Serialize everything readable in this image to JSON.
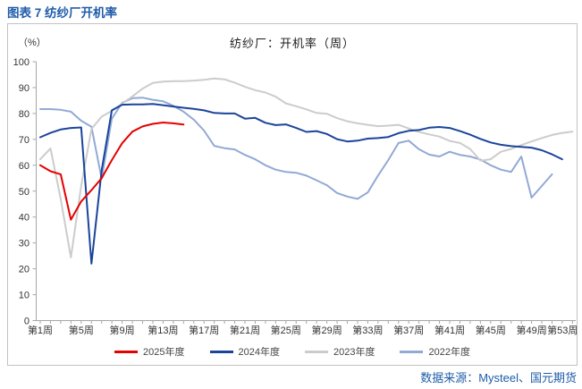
{
  "page": {
    "title": "图表 7 纺纱厂开机率",
    "source": "数据来源：Mysteel、国元期货"
  },
  "colors": {
    "accent_blue": "#1f5ca9",
    "axis": "#a6a6a6",
    "tick_text": "#333333",
    "border": "#c3c3c3"
  },
  "chart_data": {
    "type": "line",
    "title": "纺纱厂：开机率（周）",
    "unit_label": "（%）",
    "grid": false,
    "legend_position": "bottom",
    "x_axis": {
      "weeks_min": 1,
      "weeks_max": 53,
      "label_every": 4,
      "tick_labels": [
        "第1周",
        "第5周",
        "第9周",
        "第13周",
        "第17周",
        "第21周",
        "第25周",
        "第29周",
        "第33周",
        "第37周",
        "第41周",
        "第45周",
        "第49周",
        "第53周"
      ]
    },
    "y_axis": {
      "min": 0,
      "max": 100,
      "step": 10
    },
    "series": [
      {
        "name": "2025年度",
        "color": "#e60000",
        "start_week": 1,
        "values": [
          60,
          57.7,
          56.5,
          39,
          46,
          50.4,
          55,
          62,
          68.5,
          73,
          75,
          76,
          76.5,
          76.2,
          75.7
        ]
      },
      {
        "name": "2024年度",
        "color": "#1b449b",
        "start_week": 1,
        "values": [
          70.8,
          72.5,
          73.8,
          74.4,
          74.6,
          22,
          58,
          81.2,
          83.4,
          83.5,
          83.5,
          83.7,
          83.2,
          82.7,
          82.2,
          81.8,
          81.2,
          80.2,
          80,
          80,
          78,
          78.3,
          76.4,
          75.5,
          75.8,
          74.4,
          72.9,
          73.2,
          72.1,
          70.1,
          69.2,
          69.5,
          70.3,
          70.5,
          70.9,
          72.4,
          73.3,
          73.6,
          74.5,
          74.8,
          74.4,
          73.2,
          71.8,
          70.2,
          68.8,
          67.9,
          67.4,
          67.1,
          66.8,
          65.8,
          64.2,
          62.3
        ]
      },
      {
        "name": "2023年度",
        "color": "#cccccc",
        "start_week": 1,
        "values": [
          62.3,
          66.5,
          47,
          24.4,
          52,
          74,
          78.8,
          81,
          83.8,
          86.6,
          89.6,
          91.8,
          92.3,
          92.5,
          92.5,
          92.7,
          93,
          93.5,
          93.2,
          91.9,
          90.3,
          89,
          88.1,
          86.5,
          83.9,
          82.8,
          81.6,
          80.2,
          79.9,
          78.2,
          77,
          76.2,
          75.6,
          75.1,
          75.3,
          75.6,
          74.2,
          72.9,
          71.9,
          71.1,
          69.4,
          68.6,
          66.3,
          61.8,
          62.3,
          65.2,
          66.3,
          67.8,
          69.2,
          70.5,
          71.7,
          72.5,
          73
        ]
      },
      {
        "name": "2022年度",
        "color": "#92a9d5",
        "start_week": 1,
        "values": [
          81.7,
          81.7,
          81.4,
          80.7,
          77.2,
          74.9,
          54.8,
          78,
          84.1,
          85.9,
          86.1,
          85.3,
          84.7,
          83,
          80.7,
          77.6,
          73.4,
          67.5,
          66.6,
          66.1,
          64,
          62.3,
          60,
          58.3,
          57.4,
          57.1,
          56,
          54.2,
          52.3,
          49.3,
          47.9,
          47,
          49.5,
          56,
          62,
          68.6,
          69.5,
          66.2,
          64.1,
          63.4,
          65.2,
          64,
          63.4,
          62.2,
          60,
          58.3,
          57.4,
          63.4,
          47.5,
          52,
          56.5
        ]
      }
    ]
  }
}
